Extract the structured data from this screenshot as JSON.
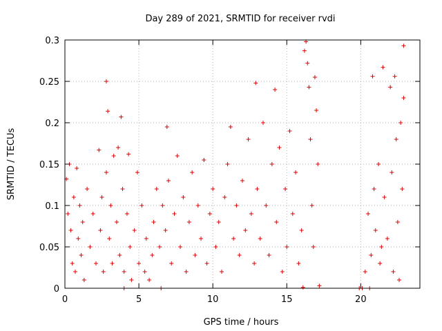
{
  "chart_data": {
    "type": "scatter",
    "title": "Day 289 of 2021, SRMTID for receiver rvdi",
    "xlabel": "GPS time / hours",
    "ylabel": "SRMTID / TECUs",
    "xlim": [
      0,
      24
    ],
    "ylim": [
      0,
      0.3
    ],
    "x_ticks": [
      0,
      5,
      10,
      15,
      20
    ],
    "y_ticks": [
      0,
      0.05,
      0.1,
      0.15,
      0.2,
      0.25,
      0.3
    ],
    "x_tick_labels": [
      "0",
      "5",
      "10",
      "15",
      "20"
    ],
    "y_tick_labels": [
      "0",
      "0.05",
      "0.1",
      "0.15",
      "0.2",
      "0.25",
      "0.3"
    ],
    "grid": true,
    "legend": "none",
    "marker": "plus",
    "color": "#dd0000",
    "series": [
      {
        "points": [
          [
            0.1,
            0.132
          ],
          [
            0.2,
            0.09
          ],
          [
            0.3,
            0.15
          ],
          [
            0.4,
            0.07
          ],
          [
            0.5,
            0.03
          ],
          [
            0.6,
            0.11
          ],
          [
            0.7,
            0.02
          ],
          [
            0.8,
            0.145
          ],
          [
            0.9,
            0.06
          ],
          [
            1.0,
            0.1
          ],
          [
            1.1,
            0.04
          ],
          [
            1.2,
            0.08
          ],
          [
            1.3,
            0.01
          ],
          [
            1.5,
            0.12
          ],
          [
            1.7,
            0.05
          ],
          [
            1.9,
            0.09
          ],
          [
            2.1,
            0.03
          ],
          [
            2.3,
            0.167
          ],
          [
            2.4,
            0.07
          ],
          [
            2.5,
            0.11
          ],
          [
            2.6,
            0.02
          ],
          [
            2.8,
            0.25
          ],
          [
            2.8,
            0.14
          ],
          [
            2.9,
            0.214
          ],
          [
            3.0,
            0.06
          ],
          [
            3.1,
            0.1
          ],
          [
            3.2,
            0.03
          ],
          [
            3.3,
            0.16
          ],
          [
            3.5,
            0.08
          ],
          [
            3.6,
            0.17
          ],
          [
            3.7,
            0.04
          ],
          [
            3.8,
            0.207
          ],
          [
            3.9,
            0.12
          ],
          [
            4.0,
            0.02
          ],
          [
            4.2,
            0.09
          ],
          [
            4.3,
            0.162
          ],
          [
            4.4,
            0.05
          ],
          [
            4.5,
            0.01
          ],
          [
            4.7,
            0.07
          ],
          [
            4.9,
            0.14
          ],
          [
            5.0,
            0.03
          ],
          [
            5.2,
            0.1
          ],
          [
            5.4,
            0.02
          ],
          [
            5.5,
            0.06
          ],
          [
            5.7,
            0.01
          ],
          [
            5.9,
            0.04
          ],
          [
            6.0,
            0.08
          ],
          [
            6.2,
            0.12
          ],
          [
            6.4,
            0.05
          ],
          [
            6.6,
            0.1
          ],
          [
            6.8,
            0.07
          ],
          [
            6.9,
            0.195
          ],
          [
            7.0,
            0.13
          ],
          [
            7.2,
            0.03
          ],
          [
            7.4,
            0.09
          ],
          [
            7.6,
            0.16
          ],
          [
            7.8,
            0.05
          ],
          [
            8.0,
            0.11
          ],
          [
            8.2,
            0.02
          ],
          [
            8.4,
            0.08
          ],
          [
            8.6,
            0.14
          ],
          [
            8.8,
            0.04
          ],
          [
            9.0,
            0.1
          ],
          [
            9.2,
            0.06
          ],
          [
            9.4,
            0.155
          ],
          [
            9.6,
            0.03
          ],
          [
            9.8,
            0.09
          ],
          [
            10.0,
            0.12
          ],
          [
            10.2,
            0.05
          ],
          [
            10.4,
            0.08
          ],
          [
            10.6,
            0.02
          ],
          [
            10.8,
            0.11
          ],
          [
            11.0,
            0.15
          ],
          [
            11.2,
            0.195
          ],
          [
            11.4,
            0.06
          ],
          [
            11.6,
            0.1
          ],
          [
            11.8,
            0.04
          ],
          [
            12.0,
            0.13
          ],
          [
            12.2,
            0.07
          ],
          [
            12.4,
            0.18
          ],
          [
            12.6,
            0.09
          ],
          [
            12.8,
            0.03
          ],
          [
            12.9,
            0.248
          ],
          [
            13.0,
            0.12
          ],
          [
            13.2,
            0.06
          ],
          [
            13.4,
            0.2
          ],
          [
            13.6,
            0.1
          ],
          [
            13.8,
            0.04
          ],
          [
            14.0,
            0.15
          ],
          [
            14.2,
            0.24
          ],
          [
            14.3,
            0.08
          ],
          [
            14.5,
            0.17
          ],
          [
            14.7,
            0.02
          ],
          [
            14.9,
            0.12
          ],
          [
            15.0,
            0.05
          ],
          [
            15.2,
            0.19
          ],
          [
            15.4,
            0.09
          ],
          [
            15.6,
            0.14
          ],
          [
            15.8,
            0.03
          ],
          [
            16.0,
            0.07
          ],
          [
            16.1,
            0.001
          ],
          [
            16.2,
            0.287
          ],
          [
            16.3,
            0.298
          ],
          [
            16.4,
            0.272
          ],
          [
            16.5,
            0.243
          ],
          [
            16.6,
            0.18
          ],
          [
            16.7,
            0.1
          ],
          [
            16.8,
            0.05
          ],
          [
            16.9,
            0.255
          ],
          [
            17.0,
            0.215
          ],
          [
            17.1,
            0.15
          ],
          [
            17.2,
            0.003
          ],
          [
            19.9,
            0.0
          ],
          [
            20.1,
            0.0
          ],
          [
            20.3,
            0.02
          ],
          [
            20.5,
            0.09
          ],
          [
            20.7,
            0.04
          ],
          [
            20.8,
            0.256
          ],
          [
            20.9,
            0.12
          ],
          [
            21.0,
            0.07
          ],
          [
            21.2,
            0.15
          ],
          [
            21.3,
            0.03
          ],
          [
            21.5,
            0.267
          ],
          [
            21.6,
            0.11
          ],
          [
            21.8,
            0.06
          ],
          [
            22.0,
            0.243
          ],
          [
            22.1,
            0.14
          ],
          [
            22.2,
            0.02
          ],
          [
            22.3,
            0.256
          ],
          [
            22.4,
            0.18
          ],
          [
            22.5,
            0.08
          ],
          [
            22.6,
            0.01
          ],
          [
            22.7,
            0.2
          ],
          [
            22.8,
            0.12
          ],
          [
            22.9,
            0.23
          ],
          [
            22.9,
            0.293
          ],
          [
            21.4,
            0.05
          ],
          [
            20.6,
            0.0
          ],
          [
            6.5,
            0.0
          ],
          [
            4.0,
            0.0
          ]
        ]
      }
    ]
  }
}
